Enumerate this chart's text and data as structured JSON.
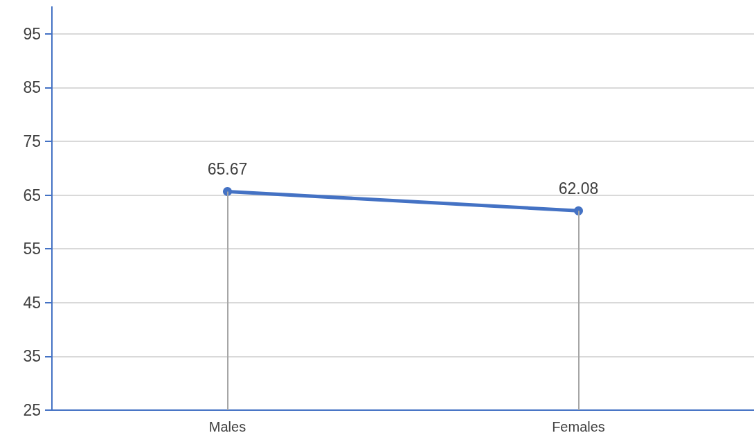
{
  "chart_data": {
    "type": "line",
    "categories": [
      "Males",
      "Females"
    ],
    "series": [
      {
        "color": "#4472c4",
        "values": [
          65.67,
          62.08
        ]
      }
    ],
    "ylim": [
      25,
      100
    ],
    "yticks": [
      25,
      35,
      45,
      55,
      65,
      75,
      85,
      95
    ],
    "grid": "y",
    "marker": "circle",
    "data_labels": true
  }
}
